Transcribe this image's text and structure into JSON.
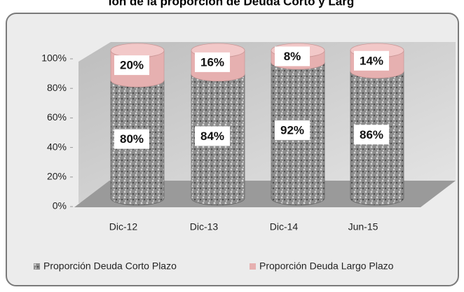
{
  "chart_data": {
    "type": "bar",
    "title": "ión de la proporción de Deuda Corto y Larg",
    "categories": [
      "Dic-12",
      "Dic-13",
      "Dic-14",
      "Jun-15"
    ],
    "series": [
      {
        "name": "Proporción Deuda Corto Plazo",
        "color": "#8c8c8c",
        "values": [
          80,
          84,
          92,
          86
        ],
        "value_labels": [
          "80%",
          "84%",
          "92%",
          "86%"
        ]
      },
      {
        "name": "Proporción Deuda Largo Plazo",
        "color": "#e6b0b0",
        "values": [
          20,
          16,
          8,
          14
        ],
        "value_labels": [
          "20%",
          "16%",
          "8%",
          "14%"
        ]
      }
    ],
    "stacked": true,
    "ylim": [
      0,
      100
    ],
    "yticks": [
      {
        "value": 0,
        "label": "0%"
      },
      {
        "value": 20,
        "label": "20%"
      },
      {
        "value": 40,
        "label": "40%"
      },
      {
        "value": 60,
        "label": "60%"
      },
      {
        "value": 80,
        "label": "80%"
      },
      {
        "value": 100,
        "label": "100%"
      }
    ]
  }
}
